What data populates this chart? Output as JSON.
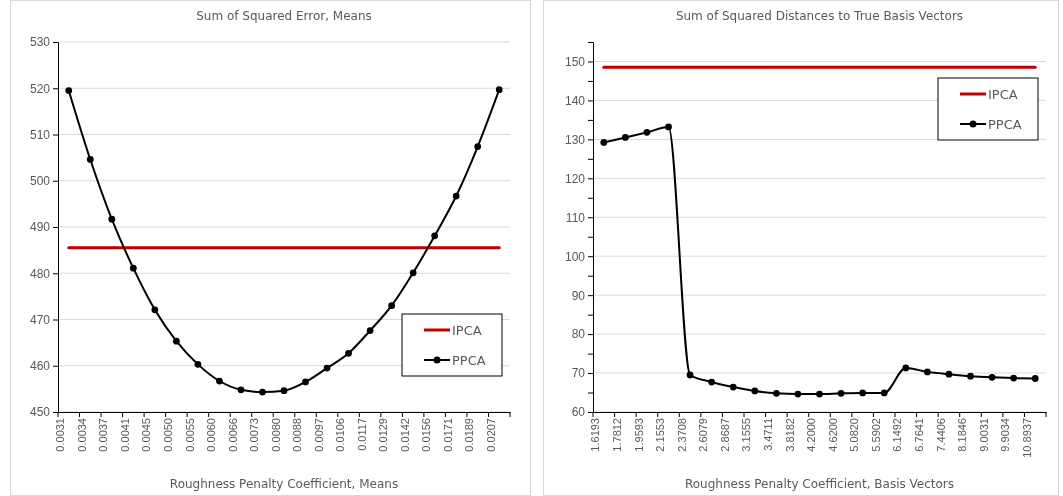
{
  "chart_data": [
    {
      "type": "line",
      "title": "Sum of Squared Error, Means",
      "xlabel": "Roughness Penalty Coefficient, Means",
      "categories": [
        "0.0031",
        "0.0034",
        "0.0037",
        "0.0041",
        "0.0045",
        "0.0050",
        "0.0055",
        "0.0060",
        "0.0066",
        "0.0073",
        "0.0080",
        "0.0088",
        "0.0097",
        "0.0106",
        "0.0117",
        "0.0129",
        "0.0142",
        "0.0156",
        "0.0171",
        "0.0189",
        "0.0207"
      ],
      "series": [
        {
          "name": "IPCA",
          "color": "#c00000",
          "marker": "none",
          "values": [
            485.5,
            485.5,
            485.5,
            485.5,
            485.5,
            485.5,
            485.5,
            485.5,
            485.5,
            485.5,
            485.5,
            485.5,
            485.5,
            485.5,
            485.5,
            485.5,
            485.5,
            485.5,
            485.5,
            485.5,
            485.5
          ]
        },
        {
          "name": "PPCA",
          "color": "#000000",
          "marker": "circle",
          "values": [
            519.5,
            504.6,
            491.7,
            481.1,
            472.1,
            465.3,
            460.3,
            456.7,
            454.8,
            454.3,
            454.6,
            456.5,
            459.5,
            462.7,
            467.6,
            473.0,
            480.1,
            488.1,
            496.7,
            507.4,
            519.7
          ]
        }
      ],
      "ylim": [
        450,
        530
      ],
      "yticks": [
        450,
        460,
        470,
        480,
        490,
        500,
        510,
        520,
        530
      ],
      "grid": "y",
      "legend": "bottom right"
    },
    {
      "type": "line",
      "title": "Sum of Squared Distances to True Basis Vectors",
      "xlabel": "Roughness Penalty Coefficient, Basis Vectors",
      "categories": [
        "1.6193",
        "1.7812",
        "1.9593",
        "2.1553",
        "2.3708",
        "2.6079",
        "2.8687",
        "3.1555",
        "3.4711",
        "3.8182",
        "4.2000",
        "4.6200",
        "5.0820",
        "5.5902",
        "6.1492",
        "6.7641",
        "7.4406",
        "8.1846",
        "9.0031",
        "9.9034",
        "10.8937"
      ],
      "series": [
        {
          "name": "IPCA",
          "color": "#c00000",
          "marker": "none",
          "values": [
            148.5,
            148.5,
            148.5,
            148.5,
            148.5,
            148.5,
            148.5,
            148.5,
            148.5,
            148.5,
            148.5,
            148.5,
            148.5,
            148.5,
            148.5,
            148.5,
            148.5,
            148.5,
            148.5,
            148.5,
            148.5
          ]
        },
        {
          "name": "PPCA",
          "color": "#000000",
          "marker": "circle",
          "values": [
            129.2,
            130.5,
            131.8,
            133.2,
            69.5,
            67.7,
            66.4,
            65.4,
            64.8,
            64.6,
            64.6,
            64.8,
            64.9,
            64.9,
            71.3,
            70.3,
            69.7,
            69.2,
            68.9,
            68.7,
            68.6
          ]
        }
      ],
      "ylim": [
        60,
        155
      ],
      "yticks": [
        60,
        {
          "value": 65,
          "label": null
        },
        70,
        {
          "value": 75,
          "label": null
        },
        80,
        {
          "value": 85,
          "label": null
        },
        90,
        {
          "value": 95,
          "label": null
        },
        100,
        {
          "value": 105,
          "label": null
        },
        110,
        {
          "value": 115,
          "label": null
        },
        120,
        {
          "value": 125,
          "label": null
        },
        130,
        {
          "value": 135,
          "label": null
        },
        140,
        {
          "value": 145,
          "label": null
        },
        150,
        {
          "value": 155,
          "label": null
        }
      ],
      "grid": "y",
      "legend": "top right"
    }
  ]
}
